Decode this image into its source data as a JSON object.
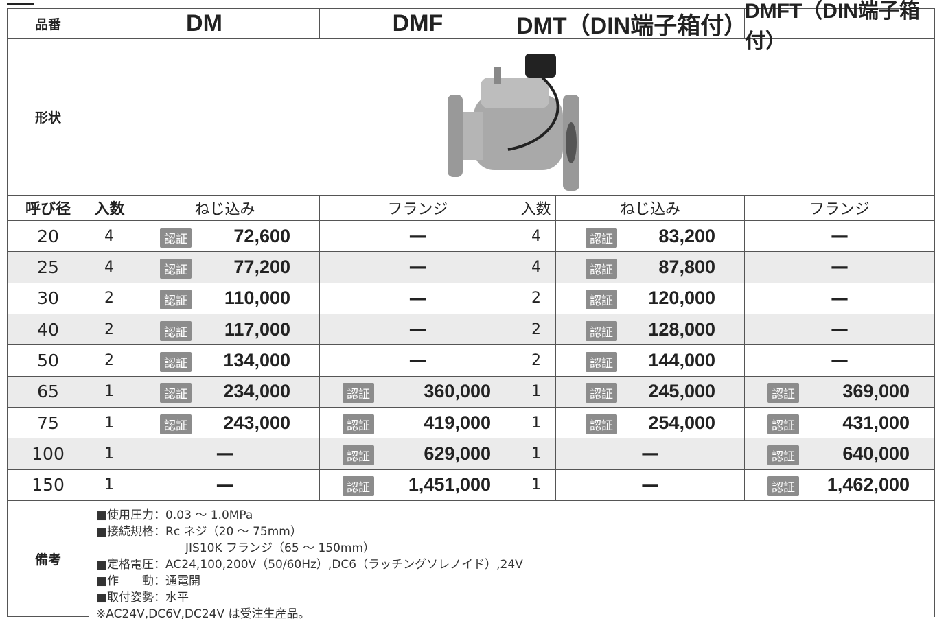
{
  "header": [
    "品番",
    "DM",
    "DMF",
    "DMT（DIN端子箱付）",
    "DMFT（DIN端子箱付）"
  ],
  "shape_label": "形状",
  "subheader": [
    "呼び径",
    "入数",
    "ねじ込み",
    "フランジ",
    "入数",
    "ねじ込み",
    "フランジ"
  ],
  "rows": [
    [
      "20",
      "4",
      {
        "badge": "認証",
        "price": "72,600"
      },
      "—",
      "4",
      {
        "badge": "認証",
        "price": "83,200"
      },
      "—"
    ],
    [
      "25",
      "4",
      {
        "badge": "認証",
        "price": "77,200"
      },
      "—",
      "4",
      {
        "badge": "認証",
        "price": "87,800"
      },
      "—"
    ],
    [
      "30",
      "2",
      {
        "badge": "認証",
        "price": "110,000"
      },
      "—",
      "2",
      {
        "badge": "認証",
        "price": "120,000"
      },
      "—"
    ],
    [
      "40",
      "2",
      {
        "badge": "認証",
        "price": "117,000"
      },
      "—",
      "2",
      {
        "badge": "認証",
        "price": "128,000"
      },
      "—"
    ],
    [
      "50",
      "2",
      {
        "badge": "認証",
        "price": "134,000"
      },
      "—",
      "2",
      {
        "badge": "認証",
        "price": "144,000"
      },
      "—"
    ],
    [
      "65",
      "1",
      {
        "badge": "認証",
        "price": "234,000"
      },
      {
        "badge": "認証",
        "price": "360,000"
      },
      "1",
      {
        "badge": "認証",
        "price": "245,000"
      },
      {
        "badge": "認証",
        "price": "369,000"
      }
    ],
    [
      "75",
      "1",
      {
        "badge": "認証",
        "price": "243,000"
      },
      {
        "badge": "認証",
        "price": "419,000"
      },
      "1",
      {
        "badge": "認証",
        "price": "254,000"
      },
      {
        "badge": "認証",
        "price": "431,000"
      }
    ],
    [
      "100",
      "1",
      "—",
      {
        "badge": "認証",
        "price": "629,000"
      },
      "1",
      "—",
      {
        "badge": "認証",
        "price": "640,000"
      }
    ],
    [
      "150",
      "1",
      "—",
      {
        "badge": "認証",
        "price": "1,451,000"
      },
      "1",
      "—",
      {
        "badge": "認証",
        "price": "1,462,000"
      }
    ]
  ],
  "remarks_label": "備考",
  "remarks": [
    "■使用圧力：0.03 ～ 1.0MPa",
    "■接続規格：Rc ネジ（20 ～ 75mm）",
    "JIS10K フランジ（65 ～ 150mm）",
    "■定格電圧：AC24,100,200V（50/60Hz）,DC6（ラッチングソレノイド）,24V",
    "■作　　動：通電開",
    "■取付姿勢：水平",
    "※AC24V,DC6V,DC24V は受注生産品。"
  ]
}
